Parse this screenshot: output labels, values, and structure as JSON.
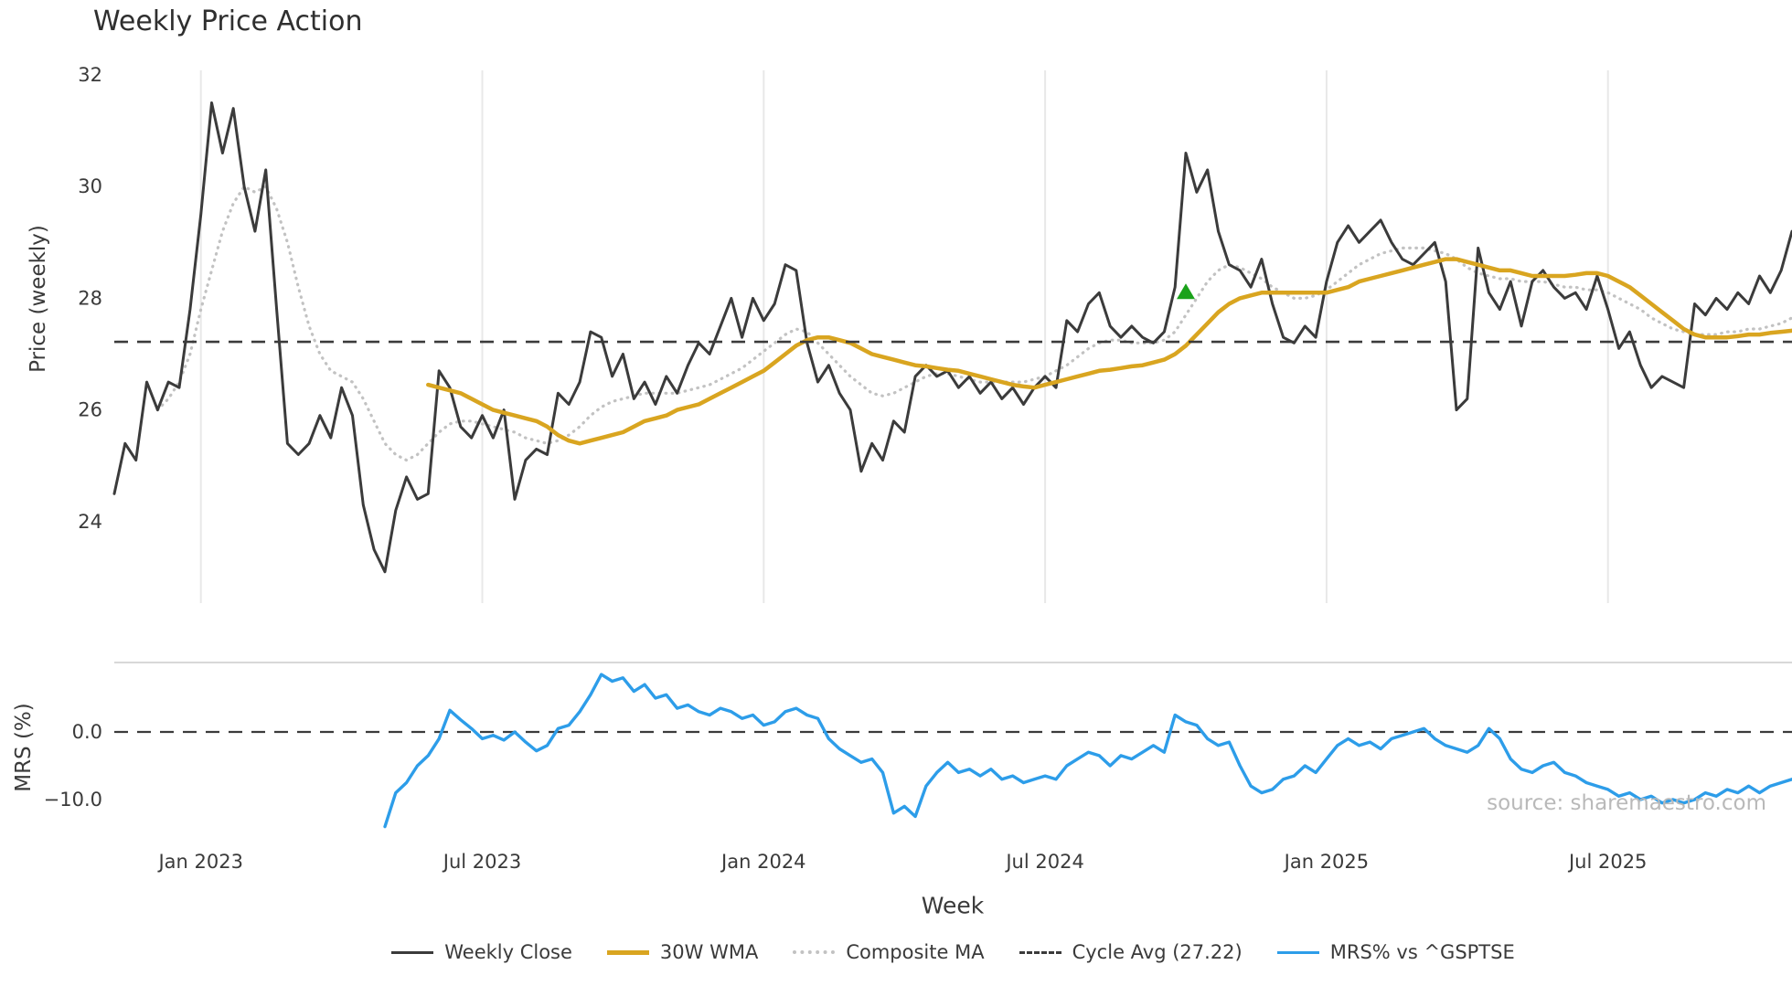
{
  "chart": {
    "title": "Weekly Price Action",
    "xlabel": "Week",
    "price_ylabel": "Price (weekly)",
    "mrs_ylabel": "MRS (%)",
    "source": "source: sharemaestro.com"
  },
  "legend": {
    "position": "bottom",
    "items": [
      {
        "label": "Weekly Close",
        "style": "solid",
        "color": "#3b3b3b"
      },
      {
        "label": "30W WMA",
        "style": "solid",
        "color": "#d9a520"
      },
      {
        "label": "Composite MA",
        "style": "dotted",
        "color": "#c2c2c2"
      },
      {
        "label": "Cycle Avg (27.22)",
        "style": "dashed",
        "color": "#3b3b3b"
      },
      {
        "label": "MRS% vs ^GSPTSE",
        "style": "solid",
        "color": "#2d9de9"
      }
    ]
  },
  "chart_data": {
    "type": "line",
    "title": "Weekly Price Action",
    "xlabel": "Week",
    "x_unit": "week_index",
    "weeks_total": 156,
    "grid": "vertical-only",
    "x_ticks": [
      {
        "week": 8,
        "label": "Jan 2023"
      },
      {
        "week": 34,
        "label": "Jul 2023"
      },
      {
        "week": 60,
        "label": "Jan 2024"
      },
      {
        "week": 86,
        "label": "Jul 2024"
      },
      {
        "week": 112,
        "label": "Jan 2025"
      },
      {
        "week": 138,
        "label": "Jul 2025"
      }
    ],
    "panels": [
      {
        "name": "price",
        "ylabel": "Price (weekly)",
        "ylim": [
          22.6,
          32.1
        ],
        "y_ticks": [
          {
            "value": 32,
            "label": "32"
          },
          {
            "value": 30,
            "label": "30"
          },
          {
            "value": 28,
            "label": "28"
          },
          {
            "value": 26,
            "label": "26"
          },
          {
            "value": 24,
            "label": "24"
          }
        ],
        "cycle_avg": 27.22,
        "marker": {
          "type": "triangle-up",
          "color": "#1aa21a",
          "week": 99,
          "value": 28.1
        },
        "series": [
          {
            "name": "Weekly Close",
            "start_week": 0,
            "color": "#3b3b3b",
            "style": "solid",
            "values": [
              24.5,
              25.4,
              25.1,
              26.5,
              26.0,
              26.5,
              26.4,
              27.8,
              29.5,
              31.5,
              30.6,
              31.4,
              30.0,
              29.2,
              30.3,
              27.8,
              25.4,
              25.2,
              25.4,
              25.9,
              25.5,
              26.4,
              25.9,
              24.3,
              23.5,
              23.1,
              24.2,
              24.8,
              24.4,
              24.5,
              26.7,
              26.4,
              25.7,
              25.5,
              25.9,
              25.5,
              26.0,
              24.4,
              25.1,
              25.3,
              25.2,
              26.3,
              26.1,
              26.5,
              27.4,
              27.3,
              26.6,
              27.0,
              26.2,
              26.5,
              26.1,
              26.6,
              26.3,
              26.8,
              27.2,
              27.0,
              27.5,
              28.0,
              27.3,
              28.0,
              27.6,
              27.9,
              28.6,
              28.5,
              27.2,
              26.5,
              26.8,
              26.3,
              26.0,
              24.9,
              25.4,
              25.1,
              25.8,
              25.6,
              26.6,
              26.8,
              26.6,
              26.7,
              26.4,
              26.6,
              26.3,
              26.5,
              26.2,
              26.4,
              26.1,
              26.4,
              26.6,
              26.4,
              27.6,
              27.4,
              27.9,
              28.1,
              27.5,
              27.3,
              27.5,
              27.3,
              27.2,
              27.4,
              28.2,
              30.6,
              29.9,
              30.3,
              29.2,
              28.6,
              28.5,
              28.2,
              28.7,
              27.9,
              27.3,
              27.2,
              27.5,
              27.3,
              28.3,
              29.0,
              29.3,
              29.0,
              29.2,
              29.4,
              29.0,
              28.7,
              28.6,
              28.8,
              29.0,
              28.3,
              26.0,
              26.2,
              28.9,
              28.1,
              27.8,
              28.3,
              27.5,
              28.3,
              28.5,
              28.2,
              28.0,
              28.1,
              27.8,
              28.4,
              27.8,
              27.1,
              27.4,
              26.8,
              26.4,
              26.6,
              26.5,
              26.4,
              27.9,
              27.7,
              28.0,
              27.8,
              28.1,
              27.9,
              28.4,
              28.1,
              28.5,
              29.2
            ]
          },
          {
            "name": "30W WMA",
            "start_week": 29,
            "color": "#d9a520",
            "style": "solid",
            "values": [
              26.45,
              26.4,
              26.35,
              26.3,
              26.2,
              26.1,
              26.0,
              25.95,
              25.9,
              25.85,
              25.8,
              25.7,
              25.55,
              25.45,
              25.4,
              25.45,
              25.5,
              25.55,
              25.6,
              25.7,
              25.8,
              25.85,
              25.9,
              26.0,
              26.05,
              26.1,
              26.2,
              26.3,
              26.4,
              26.5,
              26.6,
              26.7,
              26.85,
              27.0,
              27.15,
              27.25,
              27.3,
              27.3,
              27.25,
              27.2,
              27.1,
              27.0,
              26.95,
              26.9,
              26.85,
              26.8,
              26.78,
              26.75,
              26.72,
              26.7,
              26.65,
              26.6,
              26.55,
              26.5,
              26.45,
              26.42,
              26.4,
              26.45,
              26.5,
              26.55,
              26.6,
              26.65,
              26.7,
              26.72,
              26.75,
              26.78,
              26.8,
              26.85,
              26.9,
              27.0,
              27.15,
              27.35,
              27.55,
              27.75,
              27.9,
              28.0,
              28.05,
              28.1,
              28.1,
              28.1,
              28.1,
              28.1,
              28.1,
              28.1,
              28.15,
              28.2,
              28.3,
              28.35,
              28.4,
              28.45,
              28.5,
              28.55,
              28.6,
              28.65,
              28.7,
              28.7,
              28.65,
              28.6,
              28.55,
              28.5,
              28.5,
              28.45,
              28.4,
              28.4,
              28.4,
              28.4,
              28.42,
              28.45,
              28.45,
              28.4,
              28.3,
              28.2,
              28.05,
              27.9,
              27.75,
              27.6,
              27.45,
              27.35,
              27.3,
              27.3,
              27.3,
              27.32,
              27.35,
              27.35,
              27.38,
              27.4,
              27.42
            ]
          },
          {
            "name": "Composite MA",
            "start_week": 4,
            "color": "#c2c2c2",
            "style": "dotted",
            "values": [
              26.0,
              26.2,
              26.5,
              27.0,
              27.8,
              28.5,
              29.2,
              29.7,
              30.0,
              29.9,
              30.0,
              29.6,
              29.0,
              28.2,
              27.5,
              27.0,
              26.7,
              26.6,
              26.5,
              26.2,
              25.8,
              25.4,
              25.2,
              25.1,
              25.2,
              25.4,
              25.6,
              25.75,
              25.8,
              25.8,
              25.75,
              25.7,
              25.65,
              25.6,
              25.5,
              25.45,
              25.4,
              25.45,
              25.55,
              25.7,
              25.9,
              26.05,
              26.15,
              26.2,
              26.25,
              26.3,
              26.3,
              26.3,
              26.3,
              26.35,
              26.4,
              26.45,
              26.55,
              26.65,
              26.75,
              26.9,
              27.05,
              27.2,
              27.35,
              27.45,
              27.4,
              27.2,
              27.0,
              26.8,
              26.6,
              26.45,
              26.3,
              26.25,
              26.3,
              26.4,
              26.5,
              26.6,
              26.65,
              26.65,
              26.6,
              26.55,
              26.5,
              26.5,
              26.5,
              26.5,
              26.5,
              26.55,
              26.6,
              26.7,
              26.8,
              26.95,
              27.1,
              27.2,
              27.25,
              27.25,
              27.2,
              27.2,
              27.2,
              27.25,
              27.4,
              27.7,
              28.0,
              28.3,
              28.5,
              28.6,
              28.55,
              28.45,
              28.35,
              28.2,
              28.1,
              28.0,
              28.0,
              28.05,
              28.15,
              28.3,
              28.45,
              28.6,
              28.7,
              28.8,
              28.85,
              28.9,
              28.9,
              28.9,
              28.85,
              28.8,
              28.7,
              28.55,
              28.45,
              28.4,
              28.35,
              28.35,
              28.3,
              28.3,
              28.3,
              28.25,
              28.2,
              28.2,
              28.15,
              28.15,
              28.1,
              28.0,
              27.9,
              27.8,
              27.65,
              27.55,
              27.45,
              27.4,
              27.35,
              27.35,
              27.35,
              27.4,
              27.4,
              27.45,
              27.45,
              27.5,
              27.55,
              27.65
            ]
          }
        ]
      },
      {
        "name": "mrs",
        "ylabel": "MRS (%)",
        "ylim": [
          -16.0,
          10.3
        ],
        "zero_line": 0,
        "y_ticks": [
          {
            "value": 0,
            "label": "0.0"
          },
          {
            "value": -10,
            "label": "−10.0"
          }
        ],
        "series": [
          {
            "name": "MRS% vs ^GSPTSE",
            "start_week": 25,
            "color": "#2d9de9",
            "style": "solid",
            "values": [
              -14.0,
              -9.0,
              -7.5,
              -5.0,
              -3.5,
              -1.0,
              3.2,
              1.8,
              0.5,
              -1.0,
              -0.5,
              -1.2,
              0.0,
              -1.5,
              -2.8,
              -2.0,
              0.5,
              1.0,
              3.0,
              5.5,
              8.5,
              7.5,
              8.0,
              6.0,
              7.0,
              5.0,
              5.5,
              3.5,
              4.0,
              3.0,
              2.5,
              3.5,
              3.0,
              2.0,
              2.5,
              1.0,
              1.5,
              3.0,
              3.5,
              2.5,
              2.0,
              -1.0,
              -2.5,
              -3.5,
              -4.5,
              -4.0,
              -6.0,
              -12.0,
              -11.0,
              -12.5,
              -8.0,
              -6.0,
              -4.5,
              -6.0,
              -5.5,
              -6.5,
              -5.5,
              -7.0,
              -6.5,
              -7.5,
              -7.0,
              -6.5,
              -7.0,
              -5.0,
              -4.0,
              -3.0,
              -3.5,
              -5.0,
              -3.5,
              -4.0,
              -3.0,
              -2.0,
              -3.0,
              2.5,
              1.5,
              1.0,
              -1.0,
              -2.0,
              -1.5,
              -5.0,
              -8.0,
              -9.0,
              -8.5,
              -7.0,
              -6.5,
              -5.0,
              -6.0,
              -4.0,
              -2.0,
              -1.0,
              -2.0,
              -1.5,
              -2.5,
              -1.0,
              -0.5,
              0.0,
              0.5,
              -1.0,
              -2.0,
              -2.5,
              -3.0,
              -2.0,
              0.5,
              -1.0,
              -4.0,
              -5.5,
              -6.0,
              -5.0,
              -4.5,
              -6.0,
              -6.5,
              -7.5,
              -8.0,
              -8.5,
              -9.5,
              -9.0,
              -10.0,
              -9.5,
              -10.5,
              -10.0,
              -10.5,
              -10.0,
              -9.0,
              -9.5,
              -8.5,
              -9.0,
              -8.0,
              -9.0,
              -8.0,
              -7.5,
              -7.0
            ]
          }
        ]
      }
    ]
  }
}
